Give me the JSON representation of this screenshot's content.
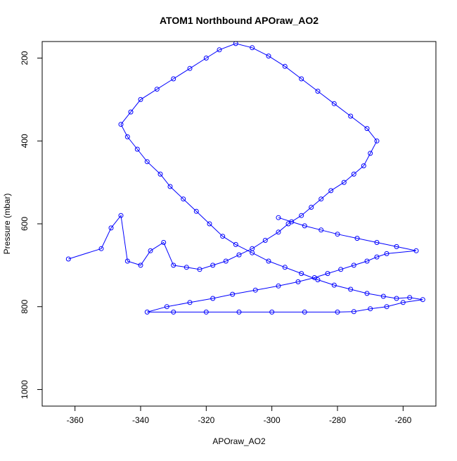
{
  "chart_data": {
    "type": "scatter",
    "title": "ATOM1 Northbound APOraw_AO2",
    "xlabel": "APOraw_AO2",
    "ylabel": "Pressure (mbar)",
    "xlim": [
      -370,
      -250
    ],
    "ylim": [
      1040,
      160
    ],
    "y_reversed": true,
    "x_ticks": [
      -360,
      -340,
      -320,
      -300,
      -280,
      -260
    ],
    "y_ticks": [
      200,
      400,
      600,
      800,
      1000
    ],
    "marker": "open-circle",
    "connected_lines": true,
    "series_color": "#0000ff",
    "grid": false,
    "legend": "none",
    "series": [
      {
        "points": [
          [
            -362,
            685
          ],
          [
            -352,
            660
          ],
          [
            -349,
            610
          ],
          [
            -346,
            580
          ],
          [
            -344,
            690
          ],
          [
            -340,
            700
          ],
          [
            -337,
            665
          ],
          [
            -333,
            645
          ],
          [
            -330,
            700
          ],
          [
            -326,
            705
          ],
          [
            -322,
            710
          ],
          [
            -318,
            700
          ],
          [
            -314,
            690
          ],
          [
            -310,
            675
          ],
          [
            -306,
            660
          ],
          [
            -302,
            640
          ],
          [
            -298,
            620
          ],
          [
            -295,
            600
          ],
          [
            -291,
            580
          ],
          [
            -288,
            560
          ],
          [
            -285,
            540
          ],
          [
            -282,
            520
          ],
          [
            -278,
            500
          ],
          [
            -275,
            480
          ],
          [
            -272,
            460
          ],
          [
            -270,
            430
          ],
          [
            -268,
            400
          ],
          [
            -271,
            370
          ],
          [
            -276,
            340
          ],
          [
            -281,
            310
          ],
          [
            -286,
            280
          ],
          [
            -291,
            250
          ],
          [
            -296,
            220
          ],
          [
            -301,
            195
          ],
          [
            -306,
            175
          ],
          [
            -311,
            165
          ],
          [
            -316,
            180
          ],
          [
            -320,
            200
          ],
          [
            -325,
            225
          ],
          [
            -330,
            250
          ],
          [
            -335,
            275
          ],
          [
            -340,
            300
          ],
          [
            -343,
            330
          ],
          [
            -346,
            360
          ],
          [
            -344,
            390
          ],
          [
            -341,
            420
          ],
          [
            -338,
            450
          ],
          [
            -334,
            480
          ],
          [
            -331,
            510
          ],
          [
            -327,
            540
          ],
          [
            -323,
            570
          ],
          [
            -319,
            600
          ],
          [
            -315,
            630
          ],
          [
            -311,
            650
          ],
          [
            -306,
            670
          ],
          [
            -301,
            690
          ],
          [
            -296,
            705
          ],
          [
            -291,
            720
          ],
          [
            -286,
            735
          ],
          [
            -281,
            748
          ],
          [
            -276,
            758
          ],
          [
            -271,
            768
          ],
          [
            -266,
            775
          ],
          [
            -262,
            780
          ],
          [
            -258,
            778
          ],
          [
            -254,
            783
          ],
          [
            -260,
            790
          ],
          [
            -265,
            800
          ],
          [
            -270,
            805
          ],
          [
            -275,
            812
          ],
          [
            -280,
            813
          ],
          [
            -290,
            813
          ],
          [
            -300,
            813
          ],
          [
            -310,
            813
          ],
          [
            -320,
            813
          ],
          [
            -330,
            813
          ],
          [
            -338,
            813
          ],
          [
            -332,
            800
          ],
          [
            -325,
            790
          ],
          [
            -318,
            780
          ],
          [
            -312,
            770
          ],
          [
            -305,
            760
          ],
          [
            -298,
            750
          ],
          [
            -292,
            740
          ],
          [
            -287,
            730
          ],
          [
            -283,
            720
          ],
          [
            -279,
            710
          ],
          [
            -275,
            700
          ],
          [
            -271,
            690
          ],
          [
            -268,
            680
          ],
          [
            -265,
            672
          ],
          [
            -256,
            665
          ],
          [
            -262,
            655
          ],
          [
            -268,
            645
          ],
          [
            -274,
            635
          ],
          [
            -280,
            625
          ],
          [
            -285,
            615
          ],
          [
            -290,
            605
          ],
          [
            -294,
            595
          ],
          [
            -298,
            585
          ]
        ]
      }
    ]
  }
}
